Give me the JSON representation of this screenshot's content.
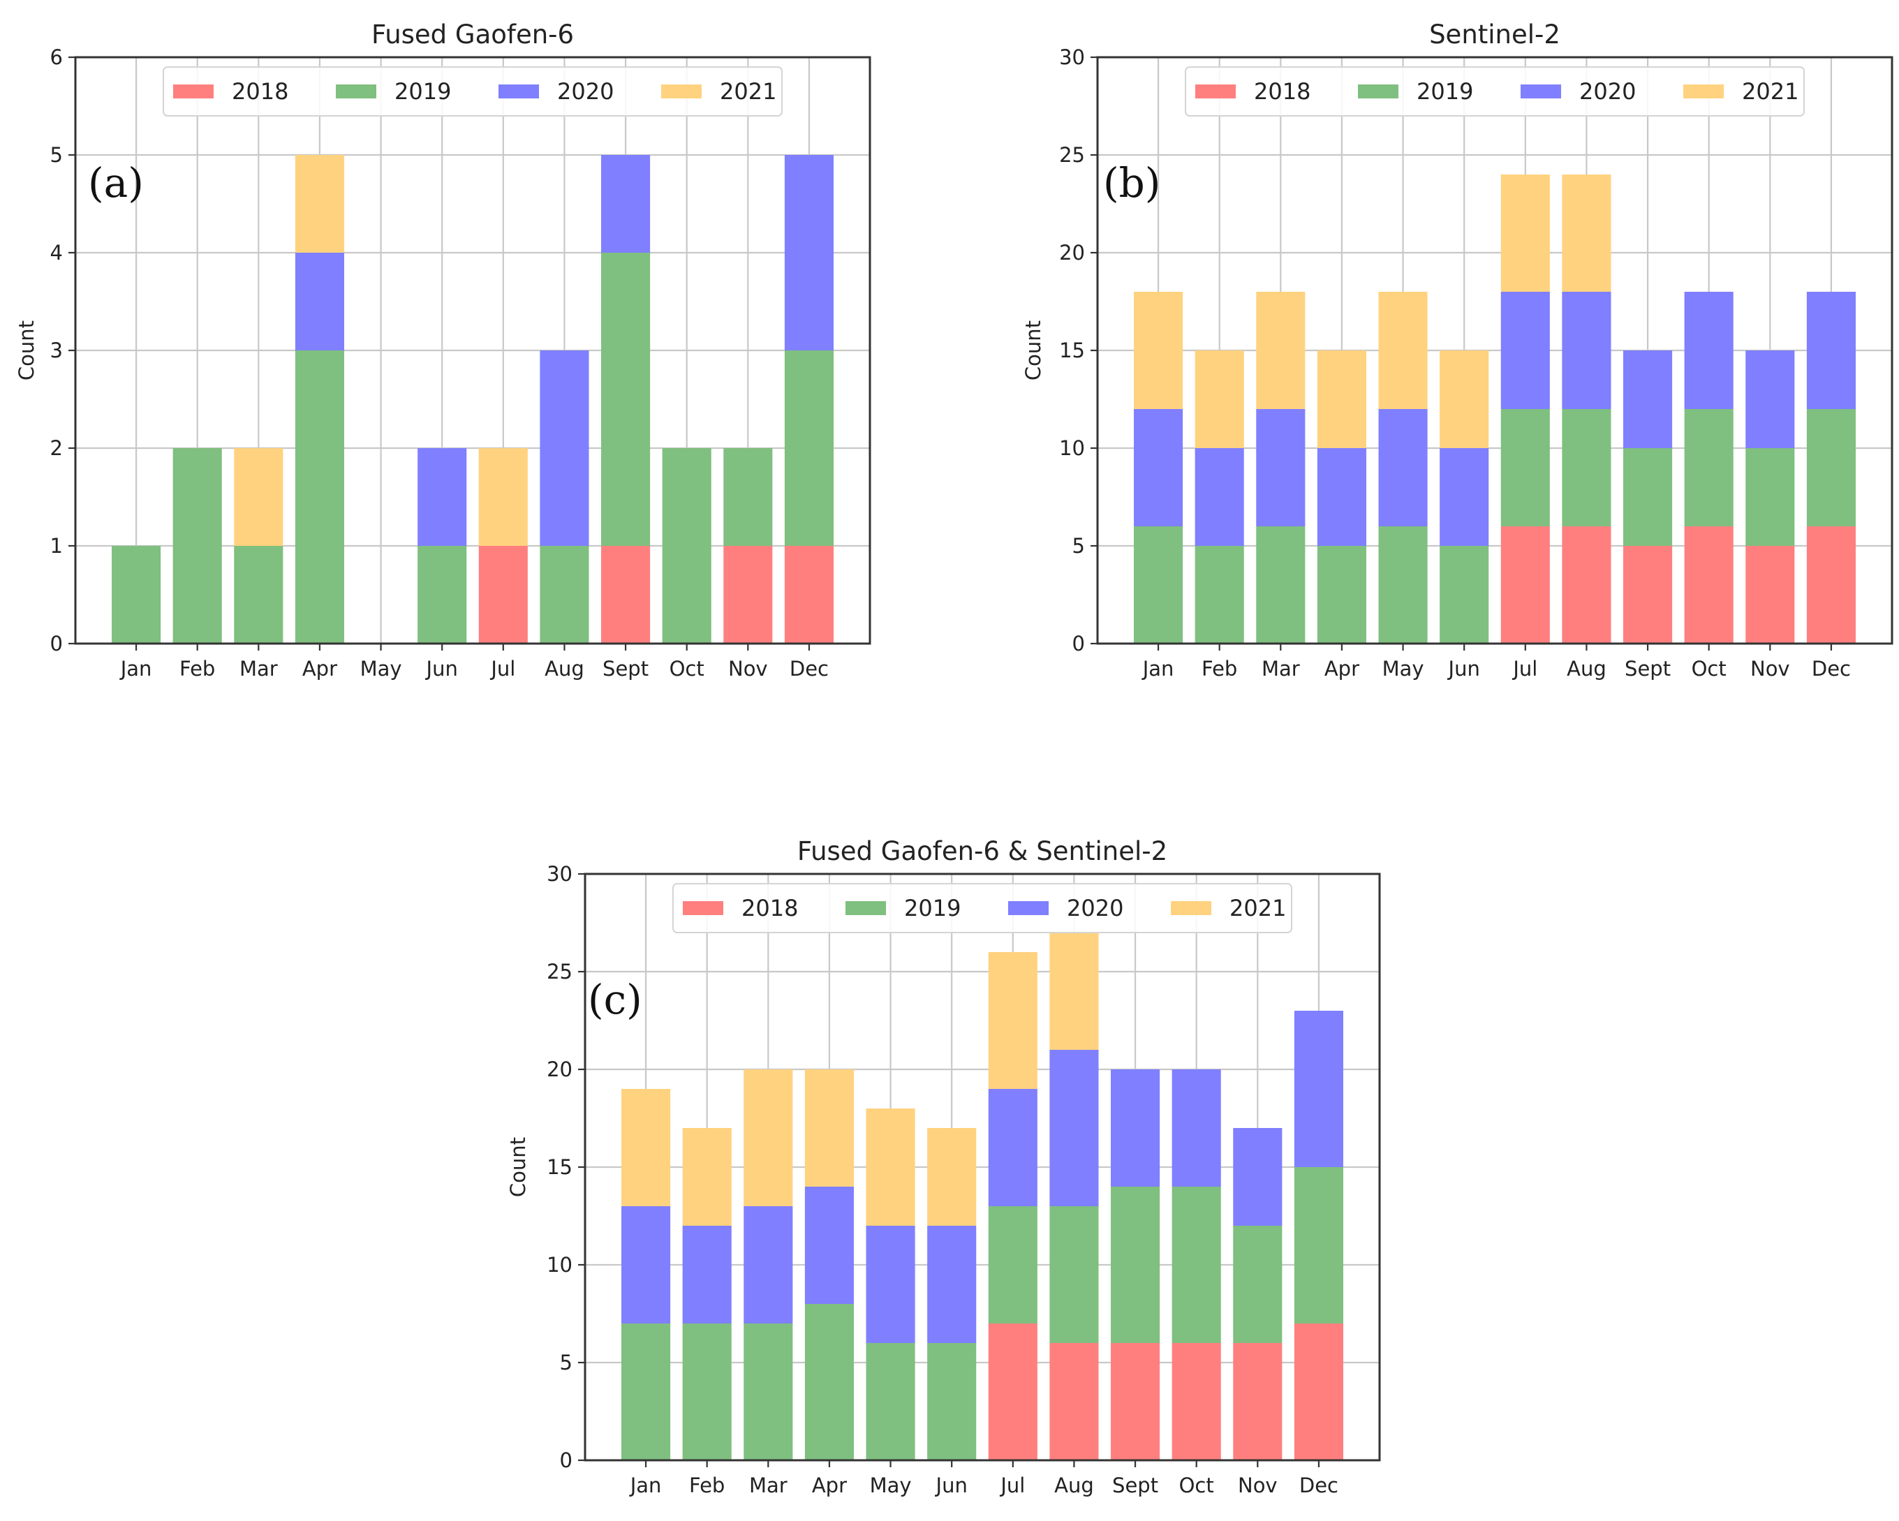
{
  "chart_data": [
    {
      "id": "a",
      "type": "bar",
      "stacked": true,
      "title": "Fused Gaofen-6",
      "panel_label": "(a)",
      "ylabel": "Count",
      "xlabel": "",
      "ylim": [
        0,
        6
      ],
      "yticks": [
        0,
        1,
        2,
        3,
        4,
        5,
        6
      ],
      "grid": true,
      "legend_position": "top",
      "categories": [
        "Jan",
        "Feb",
        "Mar",
        "Apr",
        "May",
        "Jun",
        "Jul",
        "Aug",
        "Sept",
        "Oct",
        "Nov",
        "Dec"
      ],
      "series": [
        {
          "name": "2018",
          "color": "#ff7f7f",
          "values": [
            0,
            0,
            0,
            0,
            0,
            0,
            1,
            0,
            1,
            0,
            1,
            1
          ]
        },
        {
          "name": "2019",
          "color": "#7fbf7f",
          "values": [
            1,
            2,
            1,
            3,
            0,
            1,
            0,
            1,
            3,
            2,
            1,
            2
          ]
        },
        {
          "name": "2020",
          "color": "#7f7fff",
          "values": [
            0,
            0,
            0,
            1,
            0,
            1,
            0,
            2,
            1,
            0,
            0,
            2
          ]
        },
        {
          "name": "2021",
          "color": "#ffd27f",
          "values": [
            0,
            0,
            1,
            1,
            0,
            0,
            1,
            0,
            0,
            0,
            0,
            0
          ]
        }
      ]
    },
    {
      "id": "b",
      "type": "bar",
      "stacked": true,
      "title": "Sentinel-2",
      "panel_label": "(b)",
      "ylabel": "Count",
      "xlabel": "",
      "ylim": [
        0,
        30
      ],
      "yticks": [
        0,
        5,
        10,
        15,
        20,
        25,
        30
      ],
      "grid": true,
      "legend_position": "top",
      "categories": [
        "Jan",
        "Feb",
        "Mar",
        "Apr",
        "May",
        "Jun",
        "Jul",
        "Aug",
        "Sept",
        "Oct",
        "Nov",
        "Dec"
      ],
      "series": [
        {
          "name": "2018",
          "color": "#ff7f7f",
          "values": [
            0,
            0,
            0,
            0,
            0,
            0,
            6,
            6,
            5,
            6,
            5,
            6
          ]
        },
        {
          "name": "2019",
          "color": "#7fbf7f",
          "values": [
            6,
            5,
            6,
            5,
            6,
            5,
            6,
            6,
            5,
            6,
            5,
            6
          ]
        },
        {
          "name": "2020",
          "color": "#7f7fff",
          "values": [
            6,
            5,
            6,
            5,
            6,
            5,
            6,
            6,
            5,
            6,
            5,
            6
          ]
        },
        {
          "name": "2021",
          "color": "#ffd27f",
          "values": [
            6,
            5,
            6,
            5,
            6,
            5,
            6,
            6,
            0,
            0,
            0,
            0
          ]
        }
      ]
    },
    {
      "id": "c",
      "type": "bar",
      "stacked": true,
      "title": "Fused Gaofen-6 & Sentinel-2",
      "panel_label": "(c)",
      "ylabel": "Count",
      "xlabel": "",
      "ylim": [
        0,
        30
      ],
      "yticks": [
        0,
        5,
        10,
        15,
        20,
        25,
        30
      ],
      "grid": true,
      "legend_position": "top",
      "categories": [
        "Jan",
        "Feb",
        "Mar",
        "Apr",
        "May",
        "Jun",
        "Jul",
        "Aug",
        "Sept",
        "Oct",
        "Nov",
        "Dec"
      ],
      "series": [
        {
          "name": "2018",
          "color": "#ff7f7f",
          "values": [
            0,
            0,
            0,
            0,
            0,
            0,
            7,
            6,
            6,
            6,
            6,
            7
          ]
        },
        {
          "name": "2019",
          "color": "#7fbf7f",
          "values": [
            7,
            7,
            7,
            8,
            6,
            6,
            6,
            7,
            8,
            8,
            6,
            8
          ]
        },
        {
          "name": "2020",
          "color": "#7f7fff",
          "values": [
            6,
            5,
            6,
            6,
            6,
            6,
            6,
            8,
            6,
            6,
            5,
            8
          ]
        },
        {
          "name": "2021",
          "color": "#ffd27f",
          "values": [
            6,
            5,
            7,
            6,
            6,
            5,
            7,
            6,
            0,
            0,
            0,
            0
          ]
        }
      ]
    }
  ]
}
